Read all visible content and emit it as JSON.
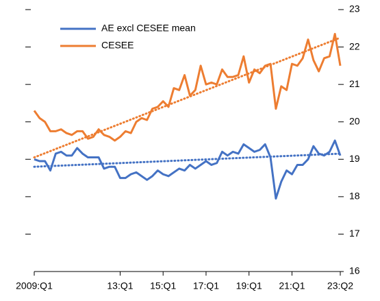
{
  "chart_data": {
    "type": "line",
    "categories": [
      "2009:Q1",
      null,
      null,
      null,
      null,
      null,
      null,
      null,
      null,
      null,
      null,
      null,
      null,
      null,
      null,
      null,
      "13:Q1",
      null,
      null,
      null,
      null,
      null,
      null,
      null,
      "15:Q1",
      null,
      null,
      null,
      null,
      null,
      null,
      null,
      "17:Q1",
      null,
      null,
      null,
      null,
      null,
      null,
      null,
      "19:Q1",
      null,
      null,
      null,
      null,
      null,
      null,
      null,
      "21:Q1",
      null,
      null,
      null,
      null,
      null,
      null,
      null,
      null,
      "23:Q2"
    ],
    "series": [
      {
        "name": "AE excl CESEE mean",
        "color": "#4472c4",
        "trend": [
          18.8,
          19.15
        ],
        "values": [
          19.0,
          18.95,
          18.95,
          18.7,
          19.15,
          19.2,
          19.1,
          19.1,
          19.3,
          19.15,
          19.05,
          19.05,
          19.05,
          18.75,
          18.8,
          18.8,
          18.5,
          18.5,
          18.6,
          18.65,
          18.55,
          18.45,
          18.55,
          18.7,
          18.6,
          18.55,
          18.65,
          18.75,
          18.7,
          18.85,
          18.75,
          18.85,
          18.95,
          18.85,
          18.9,
          19.2,
          19.1,
          19.2,
          19.15,
          19.4,
          19.3,
          19.2,
          19.25,
          19.4,
          19.05,
          17.95,
          18.4,
          18.7,
          18.6,
          18.85,
          18.85,
          19.0,
          19.35,
          19.15,
          19.1,
          19.2,
          19.5,
          19.1
        ]
      },
      {
        "name": "CESEE",
        "color": "#ed7d31",
        "trend": [
          19.05,
          22.25
        ],
        "values": [
          20.3,
          20.1,
          20.0,
          19.75,
          19.75,
          19.8,
          19.7,
          19.65,
          19.75,
          19.75,
          19.55,
          19.6,
          19.8,
          19.65,
          19.6,
          19.5,
          19.6,
          19.75,
          19.7,
          20.0,
          20.1,
          20.05,
          20.35,
          20.4,
          20.55,
          20.4,
          20.9,
          20.85,
          21.25,
          20.7,
          20.85,
          21.5,
          21.0,
          21.05,
          21.0,
          21.4,
          21.2,
          21.2,
          21.25,
          21.75,
          21.05,
          21.4,
          21.3,
          21.5,
          21.55,
          20.35,
          20.95,
          20.85,
          21.55,
          21.5,
          21.7,
          22.2,
          21.65,
          21.35,
          21.7,
          21.75,
          22.35,
          21.5
        ]
      }
    ],
    "ylim": [
      16,
      23
    ],
    "yticks": [
      16,
      17,
      18,
      19,
      20,
      21,
      22,
      23
    ]
  }
}
